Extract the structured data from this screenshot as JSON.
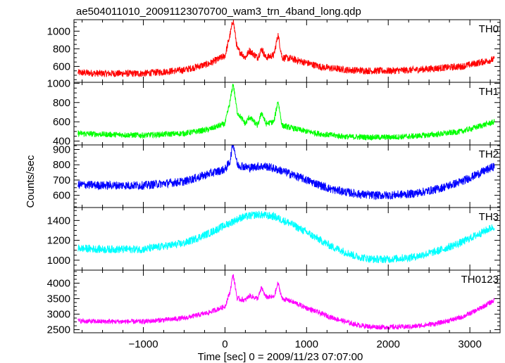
{
  "chart_data": {
    "type": "line",
    "title": "ae504011010_20091123070700_wam3_trn_4band_long.qdp",
    "xlabel": "Time [sec] 0 = 2009/11/23 07:07:00",
    "ylabel": "Counts/sec",
    "xlim": [
      -1850,
      3370
    ],
    "x_ticks": [
      -1000,
      0,
      1000,
      2000,
      3000
    ],
    "x_tick_labels": [
      "−1000",
      "0",
      "1000",
      "2000",
      "3000"
    ],
    "x_range": [
      -1800,
      3300
    ],
    "series": [
      {
        "name": "TH0",
        "color": "#ff0000",
        "ylim": [
          420,
          1130
        ],
        "y_ticks": [
          600,
          800,
          1000
        ],
        "x": [
          -1800,
          -1500,
          -1000,
          -500,
          -200,
          0,
          60,
          100,
          150,
          250,
          300,
          400,
          450,
          500,
          600,
          650,
          700,
          800,
          1000,
          1200,
          1500,
          1800,
          2000,
          2300,
          2600,
          2900,
          3100,
          3300
        ],
        "values": [
          530,
          520,
          520,
          560,
          630,
          720,
          950,
          1130,
          800,
          700,
          780,
          700,
          800,
          700,
          730,
          960,
          700,
          690,
          640,
          590,
          560,
          550,
          550,
          560,
          580,
          600,
          640,
          680
        ],
        "noise": 40
      },
      {
        "name": "TH1",
        "color": "#00ff00",
        "ylim": [
          360,
          1010
        ],
        "y_ticks": [
          400,
          600,
          800,
          1000
        ],
        "x": [
          -1800,
          -1500,
          -1000,
          -500,
          -200,
          0,
          60,
          100,
          150,
          250,
          300,
          400,
          450,
          500,
          600,
          650,
          700,
          800,
          1000,
          1200,
          1500,
          1800,
          2000,
          2300,
          2600,
          2900,
          3100,
          3300
        ],
        "values": [
          480,
          470,
          460,
          480,
          520,
          580,
          800,
          1000,
          700,
          580,
          650,
          560,
          700,
          580,
          600,
          820,
          560,
          540,
          500,
          470,
          445,
          440,
          440,
          450,
          470,
          500,
          550,
          600
        ],
        "noise": 30
      },
      {
        "name": "TH2",
        "color": "#0000ff",
        "ylim": [
          520,
          930
        ],
        "y_ticks": [
          600,
          700,
          800,
          900
        ],
        "x": [
          -1800,
          -1500,
          -1000,
          -500,
          -200,
          0,
          60,
          100,
          150,
          300,
          400,
          500,
          700,
          1000,
          1300,
          1600,
          1800,
          2000,
          2300,
          2600,
          2900,
          3100,
          3300
        ],
        "values": [
          670,
          665,
          665,
          690,
          740,
          770,
          820,
          950,
          800,
          780,
          790,
          790,
          760,
          700,
          640,
          610,
          600,
          600,
          610,
          640,
          690,
          740,
          790
        ],
        "noise": 28
      },
      {
        "name": "TH3",
        "color": "#00ffff",
        "ylim": [
          900,
          1530
        ],
        "y_ticks": [
          1000,
          1200,
          1400
        ],
        "x": [
          -1800,
          -1500,
          -1000,
          -500,
          -200,
          0,
          200,
          400,
          600,
          800,
          1000,
          1300,
          1600,
          1800,
          2000,
          2300,
          2600,
          2900,
          3100,
          3300
        ],
        "values": [
          1120,
          1110,
          1110,
          1170,
          1270,
          1350,
          1430,
          1460,
          1440,
          1370,
          1280,
          1140,
          1040,
          1010,
          1010,
          1030,
          1090,
          1180,
          1260,
          1340
        ],
        "noise": 40
      },
      {
        "name": "TH0123",
        "color": "#ff00ff",
        "ylim": [
          2400,
          4420
        ],
        "y_ticks": [
          2500,
          3000,
          3500,
          4000
        ],
        "x": [
          -1800,
          -1500,
          -1000,
          -500,
          -200,
          0,
          60,
          100,
          150,
          250,
          300,
          400,
          450,
          500,
          600,
          650,
          700,
          800,
          1000,
          1300,
          1600,
          1800,
          2000,
          2300,
          2600,
          2900,
          3100,
          3300
        ],
        "values": [
          2780,
          2760,
          2760,
          2870,
          3050,
          3250,
          3700,
          4300,
          3500,
          3450,
          3600,
          3500,
          3850,
          3550,
          3550,
          4000,
          3500,
          3430,
          3200,
          2900,
          2660,
          2590,
          2580,
          2600,
          2700,
          2900,
          3150,
          3450
        ],
        "noise": 80
      }
    ]
  }
}
